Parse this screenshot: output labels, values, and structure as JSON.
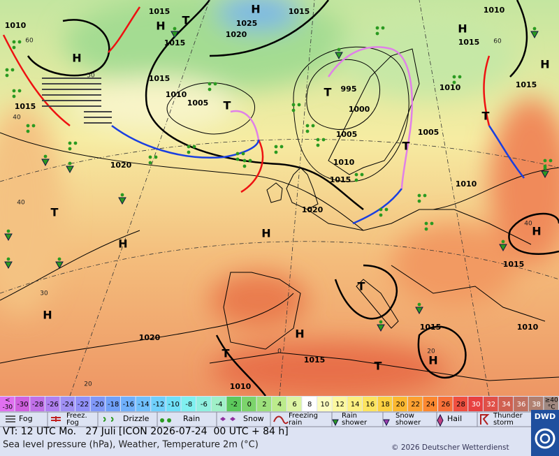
{
  "map": {
    "pressure_labels": [
      "1015",
      "1015",
      "1010",
      "1025",
      "1020",
      "1015",
      "1015",
      "1010",
      "1005",
      "995",
      "1000",
      "1005",
      "1005",
      "1010",
      "1015",
      "1020",
      "1020",
      "1015",
      "1010",
      "1015",
      "1015",
      "1010",
      "1010",
      "1015",
      "1015",
      "1010",
      "1015",
      "1020",
      "1010"
    ],
    "high_labels": [
      "H",
      "H",
      "H",
      "H",
      "H",
      "H",
      "H",
      "H",
      "H",
      "H",
      "H"
    ],
    "low_labels": [
      "T",
      "T",
      "T",
      "T",
      "T",
      "T",
      "T",
      "T",
      "T"
    ],
    "grid_labels": [
      "60",
      "50",
      "40",
      "40",
      "30",
      "20",
      "60",
      "40",
      "20",
      "0"
    ]
  },
  "scale": {
    "low": [
      "<",
      "-30"
    ],
    "cells": [
      "-30",
      "-28",
      "-26",
      "-24",
      "-22",
      "-20",
      "-18",
      "-16",
      "-14",
      "-12",
      "-10",
      "-8",
      "-6",
      "-4",
      "-2",
      "0",
      "2",
      "4",
      "6",
      "8",
      "10",
      "12",
      "14",
      "16",
      "18",
      "20",
      "22",
      "24",
      "26",
      "28",
      "30",
      "32",
      "34",
      "36",
      "38"
    ],
    "high": [
      "≥40",
      "°C"
    ]
  },
  "legend": {
    "items": [
      [
        "Fog"
      ],
      [
        "Freez.",
        "Fog"
      ],
      [
        "Drizzle"
      ],
      [
        "Rain"
      ],
      [
        "Snow"
      ],
      [
        "Freezing",
        "rain"
      ],
      [
        "Rain",
        "shower"
      ],
      [
        "Snow",
        "shower"
      ],
      [
        "Hail"
      ],
      [
        "Thunder",
        "storm"
      ]
    ]
  },
  "footer": {
    "valid_time": "VT: 12 UTC Mo.   27 Juli [ICON 2026-07-24  00 UTC + 84 h]",
    "description": "Sea level pressure (hPa), Weather, Temperature 2m (°C)",
    "copyright": "© 2026 Deutscher Wetterdienst",
    "logo": "DWD"
  }
}
